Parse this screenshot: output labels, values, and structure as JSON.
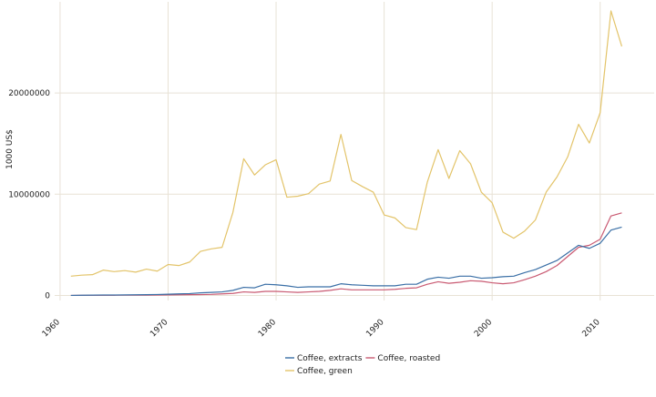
{
  "chart_data": {
    "type": "line",
    "title": "",
    "xlabel": "",
    "ylabel": "1000 US$",
    "xlim": [
      1959.5,
      2015.0
    ],
    "ylim": [
      -500000,
      29000000
    ],
    "x_ticks": [
      1960,
      1970,
      1980,
      1990,
      2000,
      2010
    ],
    "y_ticks": [
      0,
      10000000,
      20000000
    ],
    "y_tick_labels": [
      "0",
      "10000000",
      "20000000"
    ],
    "grid": true,
    "legend_position": "bottom",
    "x": [
      1961,
      1962,
      1963,
      1964,
      1965,
      1966,
      1967,
      1968,
      1969,
      1970,
      1971,
      1972,
      1973,
      1974,
      1975,
      1976,
      1977,
      1978,
      1979,
      1980,
      1981,
      1982,
      1983,
      1984,
      1985,
      1986,
      1987,
      1988,
      1989,
      1990,
      1991,
      1992,
      1993,
      1994,
      1995,
      1996,
      1997,
      1998,
      1999,
      2000,
      2001,
      2002,
      2003,
      2004,
      2005,
      2006,
      2007,
      2008,
      2009,
      2010,
      2011,
      2012
    ],
    "series": [
      {
        "name": "Coffee, extracts",
        "color": "#3a6fa6",
        "values": [
          0,
          20000,
          30000,
          40000,
          40000,
          50000,
          60000,
          70000,
          90000,
          120000,
          150000,
          180000,
          250000,
          300000,
          350000,
          500000,
          800000,
          750000,
          1100000,
          1050000,
          950000,
          800000,
          850000,
          850000,
          850000,
          1150000,
          1050000,
          1000000,
          950000,
          950000,
          950000,
          1100000,
          1100000,
          1600000,
          1800000,
          1700000,
          1900000,
          1900000,
          1700000,
          1750000,
          1850000,
          1900000,
          2250000,
          2550000,
          3000000,
          3450000,
          4200000,
          4950000,
          4650000,
          5150000,
          6450000,
          6750000
        ]
      },
      {
        "name": "Coffee, roasted",
        "color": "#c95a72",
        "values": [
          0,
          10000,
          15000,
          20000,
          20000,
          25000,
          30000,
          30000,
          40000,
          50000,
          60000,
          70000,
          80000,
          100000,
          150000,
          200000,
          350000,
          300000,
          400000,
          400000,
          350000,
          300000,
          350000,
          400000,
          500000,
          650000,
          550000,
          550000,
          550000,
          550000,
          600000,
          700000,
          750000,
          1100000,
          1350000,
          1200000,
          1300000,
          1450000,
          1400000,
          1250000,
          1150000,
          1250000,
          1550000,
          1900000,
          2350000,
          2950000,
          3850000,
          4750000,
          4950000,
          5550000,
          7850000,
          8150000
        ]
      },
      {
        "name": "Coffee, green",
        "color": "#e3c46a",
        "values": [
          1900000,
          2000000,
          2050000,
          2500000,
          2350000,
          2450000,
          2300000,
          2600000,
          2400000,
          3050000,
          2950000,
          3300000,
          4350000,
          4600000,
          4750000,
          8200000,
          13500000,
          11900000,
          12900000,
          13400000,
          9700000,
          9800000,
          10050000,
          11000000,
          11300000,
          15900000,
          11350000,
          10750000,
          10200000,
          7950000,
          7650000,
          6700000,
          6500000,
          11200000,
          14400000,
          11550000,
          14300000,
          13000000,
          10200000,
          9150000,
          6250000,
          5650000,
          6350000,
          7450000,
          10200000,
          11700000,
          13700000,
          16900000,
          15050000,
          18050000,
          28100000,
          24600000
        ]
      }
    ],
    "legend_rows": [
      [
        "Coffee, extracts",
        "Coffee, roasted"
      ],
      [
        "Coffee, green"
      ]
    ]
  }
}
